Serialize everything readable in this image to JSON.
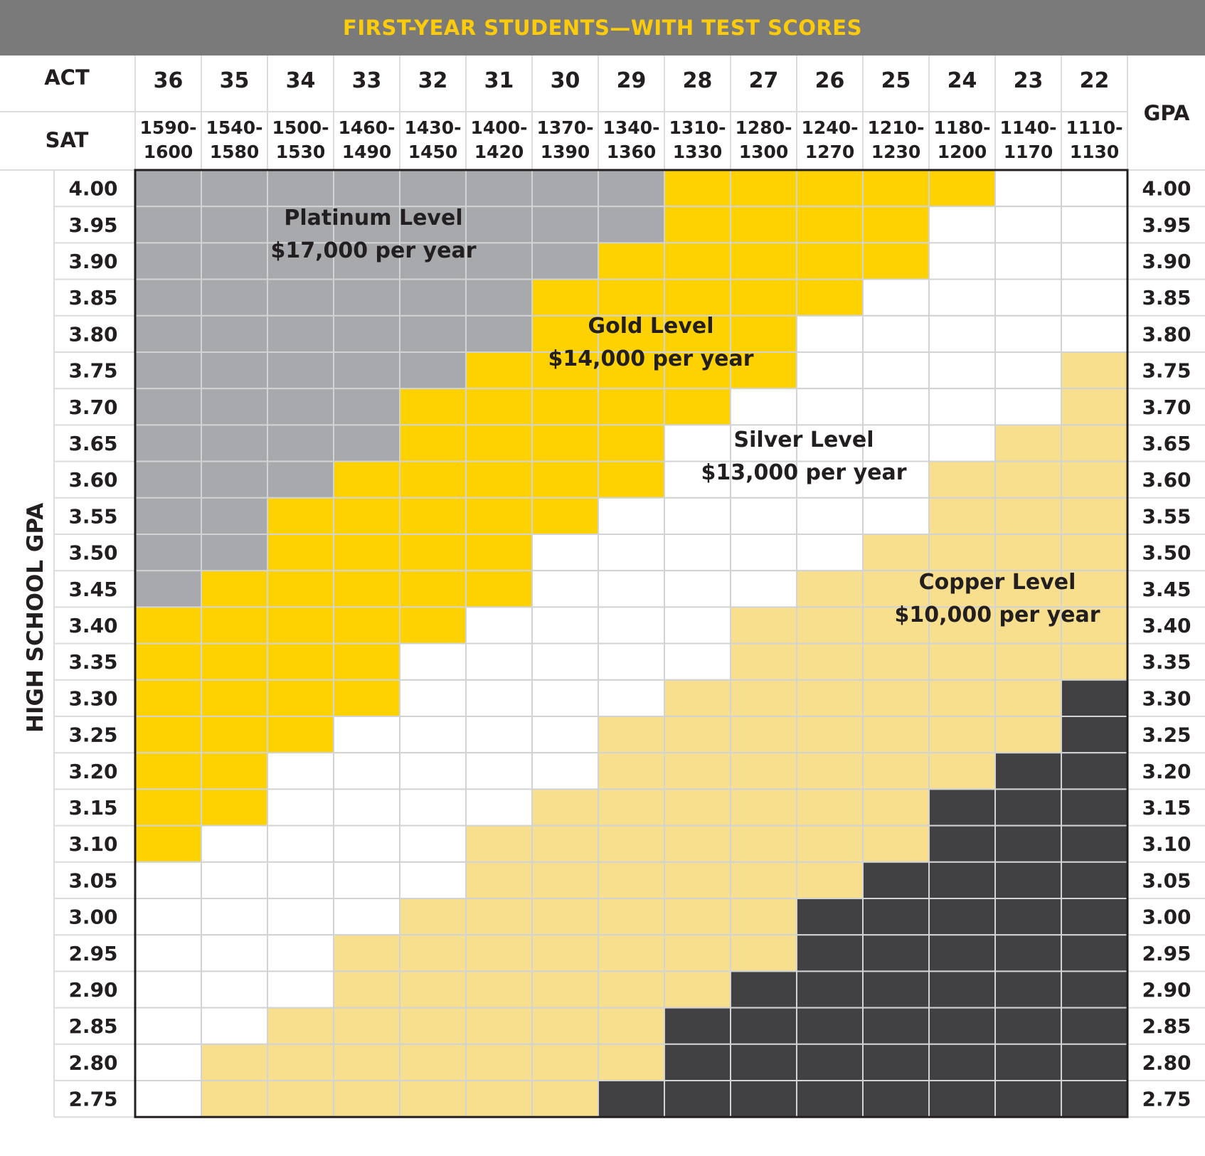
{
  "title": "FIRST-YEAR STUDENTS—WITH TEST SCORES",
  "chart_data": {
    "type": "heatmap",
    "row_headers": {
      "act": "ACT",
      "sat": "SAT",
      "gpa_right": "GPA"
    },
    "ylabel": "HIGH SCHOOL GPA",
    "act": [
      "36",
      "35",
      "34",
      "33",
      "32",
      "31",
      "30",
      "29",
      "28",
      "27",
      "26",
      "25",
      "24",
      "23",
      "22"
    ],
    "sat": [
      [
        "1590-",
        "1600"
      ],
      [
        "1540-",
        "1580"
      ],
      [
        "1500-",
        "1530"
      ],
      [
        "1460-",
        "1490"
      ],
      [
        "1430-",
        "1450"
      ],
      [
        "1400-",
        "1420"
      ],
      [
        "1370-",
        "1390"
      ],
      [
        "1340-",
        "1360"
      ],
      [
        "1310-",
        "1330"
      ],
      [
        "1280-",
        "1300"
      ],
      [
        "1240-",
        "1270"
      ],
      [
        "1210-",
        "1230"
      ],
      [
        "1180-",
        "1200"
      ],
      [
        "1140-",
        "1170"
      ],
      [
        "1110-",
        "1130"
      ]
    ],
    "gpa": [
      "4.00",
      "3.95",
      "3.90",
      "3.85",
      "3.80",
      "3.75",
      "3.70",
      "3.65",
      "3.60",
      "3.55",
      "3.50",
      "3.45",
      "3.40",
      "3.35",
      "3.30",
      "3.25",
      "3.20",
      "3.15",
      "3.10",
      "3.05",
      "3.00",
      "2.95",
      "2.90",
      "2.85",
      "2.80",
      "2.75"
    ],
    "levels": {
      "P": {
        "name": "Platinum Level",
        "amount": "$17,000 per year",
        "color": "#a7a9ac"
      },
      "G": {
        "name": "Gold Level",
        "amount": "$14,000 per year",
        "color": "#fed100"
      },
      "S": {
        "name": "Silver Level",
        "amount": "$13,000 per year",
        "color": "#ffffff"
      },
      "C": {
        "name": "Copper Level",
        "amount": "$10,000 per year",
        "color": "#f7df8e"
      },
      "N": {
        "color": "#414042"
      }
    },
    "matrix": [
      "PPPPPPPPGGGGGSS",
      "PPPPPPPPGGGGSSS",
      "PPPPPPPGGGGGSSS",
      "PPPPPPGGGGGSSSS",
      "PPPPPPGGGGSSSSS",
      "PPPPPGGGGGSSSSC",
      "PPPPGGGGGSSSSSC",
      "PPPPGGGGSSSSSCC",
      "PPPGGGGGSSSSCCC",
      "PPGGGGGSSSSSCCC",
      "PPGGGGSSSSSCCCC",
      "PGGGGGSSSSCCCCC",
      "GGGGGSSSSCCCCCC",
      "GGGGSSSSSCCCCCC",
      "GGGGSSSSCCCCCCN",
      "GGGSSSSCCCCCCCN",
      "GGSSSSSCCCCCCNN",
      "GGSSSSCCCCCCNNN",
      "GSSSSCCCCCCCNNN",
      "SSSSSCCCCCCNNNN",
      "SSSSCCCCCCNNNNN",
      "SSSCCCCCCCNNNNN",
      "SSSCCCCCCNNNNNN",
      "SSCCCCCCNNNNNNN",
      "SCCCCCCCNNNNNNN",
      "SCCCCCCNNNNNNNN"
    ]
  }
}
